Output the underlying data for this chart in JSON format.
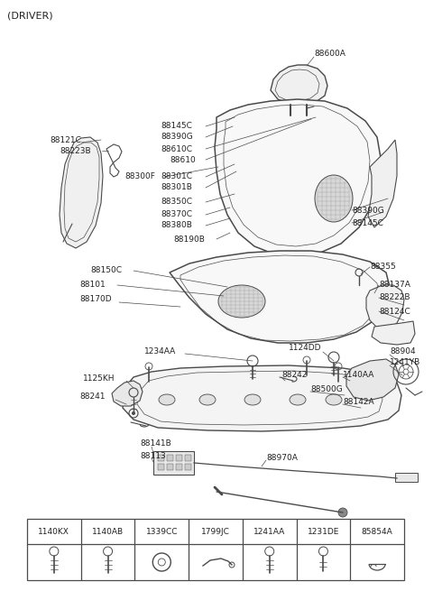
{
  "bg_color": "#ffffff",
  "line_color": "#4a4a4a",
  "text_color": "#222222",
  "fig_width": 4.8,
  "fig_height": 6.55,
  "dpi": 100,
  "title": "(DRIVER)",
  "table_labels": [
    "1140KX",
    "1140AB",
    "1339CC",
    "1799JC",
    "1241AA",
    "1231DE",
    "85854A"
  ]
}
